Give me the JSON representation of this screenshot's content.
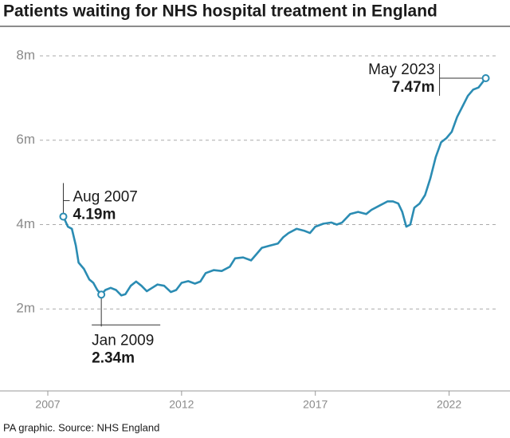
{
  "chart_data": {
    "type": "line",
    "title": "Patients waiting for NHS hospital treatment in England",
    "source": "PA graphic. Source: NHS England",
    "x": [
      2007.58,
      2007.75,
      2007.9,
      2008.05,
      2008.15,
      2008.35,
      2008.55,
      2008.7,
      2008.85,
      2009.0,
      2009.15,
      2009.35,
      2009.55,
      2009.75,
      2009.9,
      2010.1,
      2010.3,
      2010.5,
      2010.7,
      2010.9,
      2011.1,
      2011.35,
      2011.6,
      2011.8,
      2012.0,
      2012.25,
      2012.5,
      2012.7,
      2012.9,
      2013.2,
      2013.5,
      2013.8,
      2014.0,
      2014.3,
      2014.6,
      2014.8,
      2015.0,
      2015.3,
      2015.6,
      2015.8,
      2016.0,
      2016.3,
      2016.6,
      2016.8,
      2017.0,
      2017.3,
      2017.6,
      2017.8,
      2018.0,
      2018.3,
      2018.6,
      2018.9,
      2019.1,
      2019.4,
      2019.7,
      2019.9,
      2020.1,
      2020.25,
      2020.4,
      2020.55,
      2020.7,
      2020.9,
      2021.1,
      2021.3,
      2021.5,
      2021.7,
      2021.9,
      2022.1,
      2022.3,
      2022.5,
      2022.7,
      2022.9,
      2023.1,
      2023.37
    ],
    "series": [
      {
        "color": "#2b8cb3",
        "values": [
          4.19,
          3.95,
          3.9,
          3.5,
          3.1,
          2.95,
          2.7,
          2.62,
          2.45,
          2.34,
          2.45,
          2.5,
          2.45,
          2.32,
          2.35,
          2.55,
          2.65,
          2.55,
          2.42,
          2.5,
          2.58,
          2.55,
          2.4,
          2.45,
          2.62,
          2.66,
          2.6,
          2.65,
          2.85,
          2.92,
          2.9,
          3.0,
          3.2,
          3.22,
          3.15,
          3.3,
          3.45,
          3.5,
          3.55,
          3.7,
          3.8,
          3.9,
          3.85,
          3.8,
          3.95,
          4.02,
          4.05,
          4.0,
          4.05,
          4.25,
          4.3,
          4.25,
          4.35,
          4.45,
          4.55,
          4.55,
          4.5,
          4.3,
          3.95,
          4.0,
          4.4,
          4.5,
          4.7,
          5.1,
          5.6,
          5.95,
          6.05,
          6.2,
          6.55,
          6.8,
          7.05,
          7.2,
          7.25,
          7.47
        ]
      }
    ],
    "xlim": [
      2007,
      2023.83
    ],
    "xticks": [
      2007,
      2012,
      2017,
      2022
    ],
    "ylim": [
      0,
      8
    ],
    "yticks": [
      {
        "value": 2,
        "label": "2m"
      },
      {
        "value": 4,
        "label": "4m"
      },
      {
        "value": 6,
        "label": "6m"
      },
      {
        "value": 8,
        "label": "8m"
      }
    ],
    "grid": true,
    "annotations": [
      {
        "date": "Aug 2007",
        "label": "4.19m",
        "x": 2007.58,
        "y": 4.19
      },
      {
        "date": "Jan 2009",
        "label": "2.34m",
        "x": 2009.0,
        "y": 2.34
      },
      {
        "date": "May 2023",
        "label": "7.47m",
        "x": 2023.37,
        "y": 7.47
      }
    ]
  }
}
